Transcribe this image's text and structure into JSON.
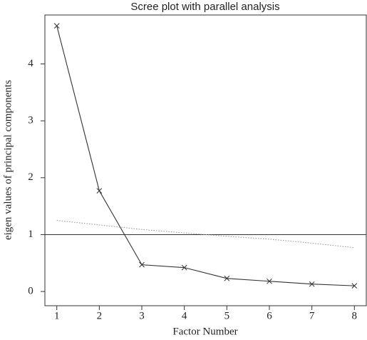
{
  "chart_data": {
    "type": "line",
    "title": "Scree plot with parallel analysis",
    "x_label": "Factor Number",
    "y_label": "eigen values of principal components",
    "x": [
      1,
      2,
      3,
      4,
      5,
      6,
      7,
      8
    ],
    "series": [
      {
        "color": "#333333",
        "marker": "x",
        "dash": "solid",
        "values": [
          4.67,
          1.77,
          0.47,
          0.42,
          0.23,
          0.18,
          0.13,
          0.1
        ]
      },
      {
        "color": "#999999",
        "marker": "none",
        "dash": "dotted",
        "values": [
          1.25,
          1.17,
          1.09,
          1.03,
          0.97,
          0.92,
          0.85,
          0.77
        ]
      }
    ],
    "hline": 1,
    "xlim": [
      0.72,
      8.28
    ],
    "xticks": [
      1,
      2,
      3,
      4,
      5,
      6,
      7,
      8
    ],
    "ylim": [
      -0.25,
      4.86
    ],
    "yticks": [
      0,
      1,
      2,
      3,
      4
    ]
  }
}
